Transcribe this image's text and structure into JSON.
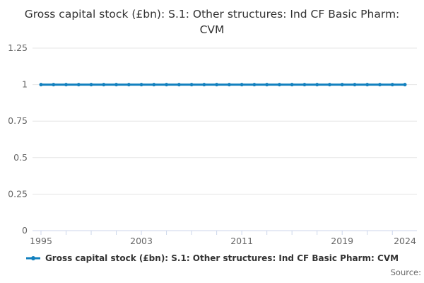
{
  "chart": {
    "title": "Gross capital stock (£bn): S.1: Other structures: Ind CF Basic Pharm: CVM"
  },
  "legend": {
    "label": "Gross capital stock (£bn): S.1: Other structures: Ind CF Basic Pharm: CVM"
  },
  "footer": {
    "source": "Source:"
  },
  "colors": {
    "series": "#1280be",
    "grid": "#e6e6e6",
    "axis_line": "#ccd6eb",
    "tick": "#ccd6eb",
    "axis_label": "#666666",
    "title": "#333333",
    "legend_text": "#333333",
    "background": "#ffffff"
  },
  "chart_data": {
    "type": "line",
    "title": "Gross capital stock (£bn): S.1: Other structures: Ind CF Basic Pharm: CVM",
    "x": [
      1995,
      1996,
      1997,
      1998,
      1999,
      2000,
      2001,
      2002,
      2003,
      2004,
      2005,
      2006,
      2007,
      2008,
      2009,
      2010,
      2011,
      2012,
      2013,
      2014,
      2015,
      2016,
      2017,
      2018,
      2019,
      2020,
      2021,
      2022,
      2023,
      2024
    ],
    "series": [
      {
        "name": "Gross capital stock (£bn): S.1: Other structures: Ind CF Basic Pharm: CVM",
        "values": [
          1,
          1,
          1,
          1,
          1,
          1,
          1,
          1,
          1,
          1,
          1,
          1,
          1,
          1,
          1,
          1,
          1,
          1,
          1,
          1,
          1,
          1,
          1,
          1,
          1,
          1,
          1,
          1,
          1,
          1
        ]
      }
    ],
    "xlabel": "",
    "ylabel": "",
    "xlim": [
      1995,
      2024
    ],
    "ylim": [
      0,
      1.25
    ],
    "yticks": [
      0,
      0.25,
      0.5,
      0.75,
      1,
      1.25
    ],
    "ytick_labels": [
      "0",
      "0.25",
      "0.5",
      "0.75",
      "1",
      "1.25"
    ],
    "xticks_minor_years": [
      1995,
      1997,
      1999,
      2001,
      2003,
      2005,
      2007,
      2009,
      2011,
      2013,
      2015,
      2017,
      2019,
      2021,
      2023
    ],
    "xtick_labels": [
      "1995",
      "2003",
      "2011",
      "2019",
      "2024"
    ],
    "xtick_label_years": [
      1995,
      2003,
      2011,
      2019,
      2024
    ],
    "grid": true,
    "legend_position": "bottom",
    "marker": "circle"
  }
}
